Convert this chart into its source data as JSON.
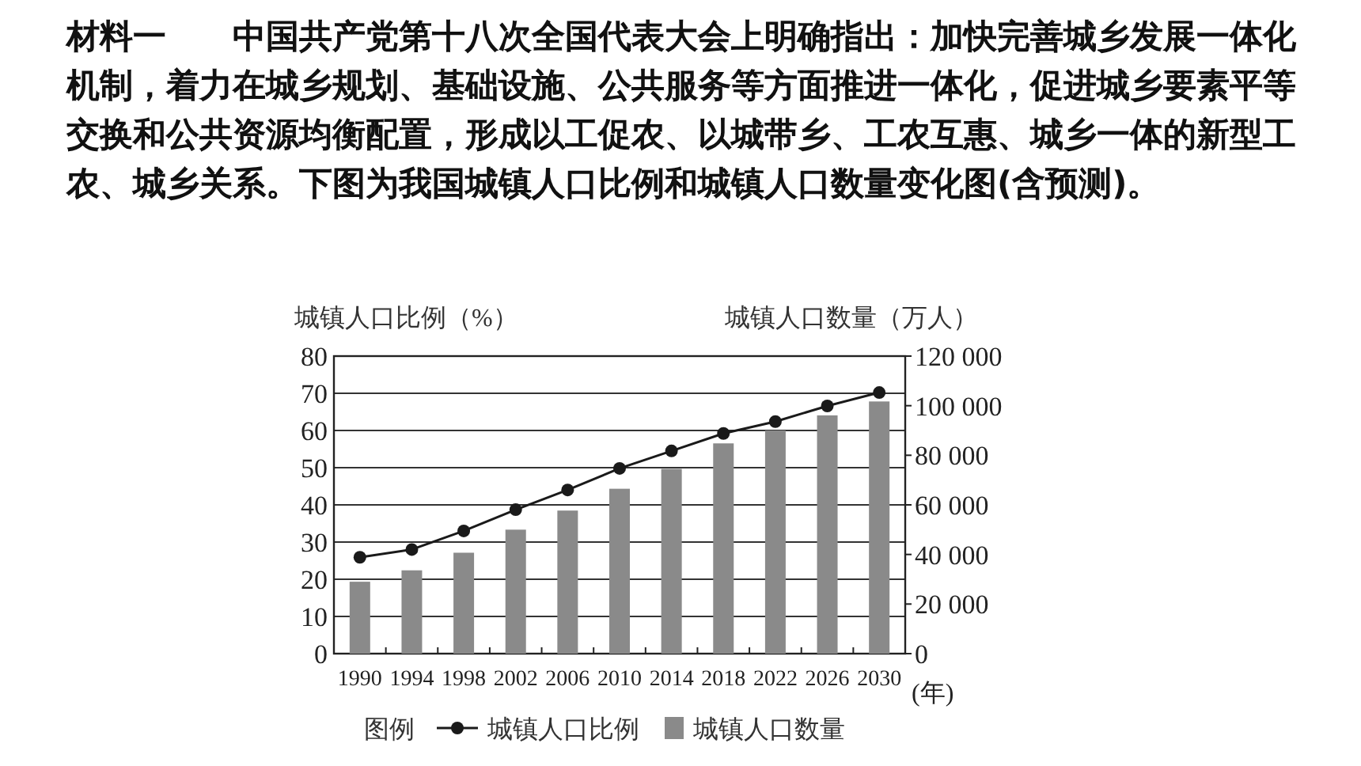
{
  "chart_data": {
    "type": "bar",
    "title": "材料一　　中国共产党第十八次全国代表大会上明确指出：加快完善城乡发展一体化机制，着力在城乡规划、基础设施、公共服务等方面推进一体化，促进城乡要素平等交换和公共资源均衡配置，形成以工促农、以城带乡、工农互惠、城乡一体的新型工农、城乡关系。下图为我国城镇人口比例和城镇人口数量变化图(含预测)。",
    "ylabel": "城镇人口比例（%）",
    "y2label": "城镇人口数量（万人）",
    "xlabel": "(年)",
    "legend_title": "图例",
    "categories": [
      "1990",
      "1994",
      "1998",
      "2002",
      "2006",
      "2010",
      "2014",
      "2018",
      "2022",
      "2026",
      "2030"
    ],
    "series": [
      {
        "name": "城镇人口比例",
        "type": "line",
        "color": "#1a1a1a",
        "marker": "circle",
        "values": [
          25.9,
          28,
          33,
          38.7,
          44,
          49.8,
          54.5,
          59.2,
          62.4,
          66.6,
          70.2
        ]
      },
      {
        "name": "城镇人口数量",
        "axis": "y2",
        "color": "#8a8a8a",
        "values": [
          29000,
          33600,
          40700,
          50000,
          57700,
          66500,
          74500,
          84800,
          90000,
          96100,
          101700
        ]
      }
    ],
    "ylim": [
      0,
      80
    ],
    "yticks": [
      0,
      10,
      20,
      30,
      40,
      50,
      60,
      70,
      80
    ],
    "y2lim": [
      0,
      120000
    ],
    "y2ticks": [
      0,
      {
        "value": 20000,
        "label": "20 000"
      },
      {
        "value": 40000,
        "label": "40 000"
      },
      {
        "value": 60000,
        "label": "60 000"
      },
      {
        "value": 80000,
        "label": "80 000"
      },
      {
        "value": 100000,
        "label": "100 000"
      },
      {
        "value": 120000,
        "label": "120 000"
      }
    ],
    "grid": "y",
    "legend": "bottom"
  }
}
